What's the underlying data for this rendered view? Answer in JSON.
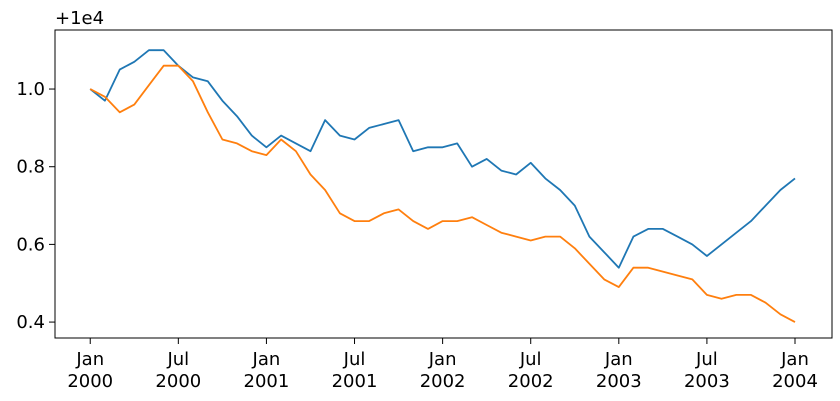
{
  "chart_data": {
    "type": "line",
    "offset_text": "+1e4",
    "x": [
      2000.0,
      2000.083,
      2000.167,
      2000.25,
      2000.333,
      2000.417,
      2000.5,
      2000.583,
      2000.667,
      2000.75,
      2000.833,
      2000.917,
      2001.0,
      2001.083,
      2001.167,
      2001.25,
      2001.333,
      2001.417,
      2001.5,
      2001.583,
      2001.667,
      2001.75,
      2001.833,
      2001.917,
      2002.0,
      2002.083,
      2002.167,
      2002.25,
      2002.333,
      2002.417,
      2002.5,
      2002.583,
      2002.667,
      2002.75,
      2002.833,
      2002.917,
      2003.0,
      2003.083,
      2003.167,
      2003.25,
      2003.333,
      2003.417,
      2003.5,
      2003.583,
      2003.667,
      2003.75,
      2003.833,
      2003.917,
      2004.0
    ],
    "series": [
      {
        "color": "#1f77b4",
        "values": [
          1.0,
          0.97,
          1.05,
          1.07,
          1.1,
          1.1,
          1.06,
          1.03,
          1.02,
          0.97,
          0.93,
          0.88,
          0.85,
          0.88,
          0.86,
          0.84,
          0.92,
          0.88,
          0.87,
          0.9,
          0.91,
          0.92,
          0.84,
          0.85,
          0.85,
          0.86,
          0.8,
          0.82,
          0.79,
          0.78,
          0.81,
          0.77,
          0.74,
          0.7,
          0.62,
          0.58,
          0.54,
          0.62,
          0.64,
          0.64,
          0.62,
          0.6,
          0.57,
          0.6,
          0.63,
          0.66,
          0.7,
          0.74,
          0.77
        ]
      },
      {
        "color": "#ff7f0e",
        "values": [
          1.0,
          0.98,
          0.94,
          0.96,
          1.01,
          1.06,
          1.06,
          1.02,
          0.94,
          0.87,
          0.86,
          0.84,
          0.83,
          0.87,
          0.84,
          0.78,
          0.74,
          0.68,
          0.66,
          0.66,
          0.68,
          0.69,
          0.66,
          0.64,
          0.66,
          0.66,
          0.67,
          0.65,
          0.63,
          0.62,
          0.61,
          0.62,
          0.62,
          0.59,
          0.55,
          0.51,
          0.49,
          0.54,
          0.54,
          0.53,
          0.52,
          0.51,
          0.47,
          0.46,
          0.47,
          0.47,
          0.45,
          0.42,
          0.4
        ]
      }
    ],
    "xlim": [
      1999.8,
      2004.21
    ],
    "ylim": [
      0.359,
      1.152
    ],
    "xticks": [
      {
        "value": 2000,
        "label": "Jan 2000"
      },
      {
        "value": 2000.5,
        "label": "Jul 2000"
      },
      {
        "value": 2001,
        "label": "Jan 2001"
      },
      {
        "value": 2001.5,
        "label": "Jul 2001"
      },
      {
        "value": 2002,
        "label": "Jan 2002"
      },
      {
        "value": 2002.5,
        "label": "Jul 2002"
      },
      {
        "value": 2003,
        "label": "Jan 2003"
      },
      {
        "value": 2003.5,
        "label": "Jul 2003"
      },
      {
        "value": 2004,
        "label": "Jan 2004"
      }
    ],
    "yticks": [
      0.4,
      0.6,
      0.8,
      {
        "value": 1,
        "label": "1.0"
      }
    ]
  }
}
